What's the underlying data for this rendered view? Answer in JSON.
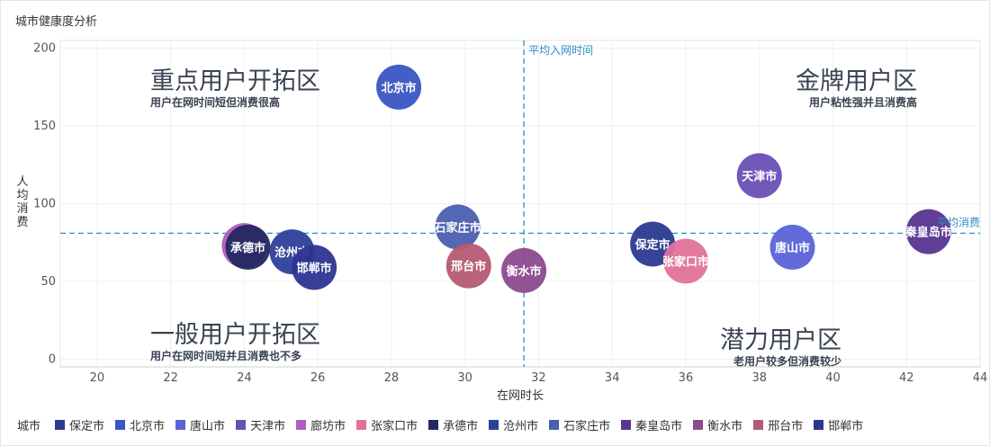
{
  "title": "城市健康度分析",
  "chart_data": {
    "type": "scatter",
    "xlabel": "在网时长",
    "ylabel": "人均消费",
    "xlim": [
      19,
      44
    ],
    "ylim": [
      -5,
      205
    ],
    "x_ticks": [
      "20",
      "22",
      "24",
      "26",
      "28",
      "30",
      "32",
      "34",
      "36",
      "38",
      "40",
      "42",
      "44"
    ],
    "y_ticks": [
      "0",
      "50",
      "100",
      "150",
      "200"
    ],
    "grid": true,
    "legend_position": "bottom",
    "legend_title": "城市",
    "reference_lines": {
      "x": {
        "value": 31.6,
        "label": "平均入网时间"
      },
      "y": {
        "value": 81,
        "label": "平均消费"
      }
    },
    "quadrants": [
      {
        "title": "重点用户开拓区",
        "subtitle": "用户在网时间短但消费很高"
      },
      {
        "title": "金牌用户区",
        "subtitle": "用户粘性强并且消费高"
      },
      {
        "title": "一般用户开拓区",
        "subtitle": "用户在网时间短并且消费也不多"
      },
      {
        "title": "潜力用户区",
        "subtitle": "老用户较多但消费较少"
      }
    ],
    "series": [
      {
        "name": "保定市",
        "x": 35.1,
        "y": 74,
        "color": "#2b3a8f"
      },
      {
        "name": "北京市",
        "x": 28.2,
        "y": 175,
        "color": "#3a55c4"
      },
      {
        "name": "唐山市",
        "x": 38.9,
        "y": 72,
        "color": "#5a63d6"
      },
      {
        "name": "天津市",
        "x": 38.0,
        "y": 118,
        "color": "#6a4fb5"
      },
      {
        "name": "廊坊市",
        "x": 24.0,
        "y": 73,
        "color": "#b05cc0"
      },
      {
        "name": "张家口市",
        "x": 36.0,
        "y": 63,
        "color": "#e07398"
      },
      {
        "name": "承德市",
        "x": 24.1,
        "y": 72,
        "color": "#23275f"
      },
      {
        "name": "沧州市",
        "x": 25.3,
        "y": 69,
        "color": "#2e3f99"
      },
      {
        "name": "石家庄市",
        "x": 29.8,
        "y": 85,
        "color": "#4a5fb0"
      },
      {
        "name": "秦皇岛市",
        "x": 42.6,
        "y": 82,
        "color": "#5a3591"
      },
      {
        "name": "衡水市",
        "x": 31.6,
        "y": 57,
        "color": "#8c4a8f"
      },
      {
        "name": "邢台市",
        "x": 30.1,
        "y": 60,
        "color": "#b55a72"
      },
      {
        "name": "邯郸市",
        "x": 25.9,
        "y": 59,
        "color": "#2c3590"
      }
    ]
  }
}
